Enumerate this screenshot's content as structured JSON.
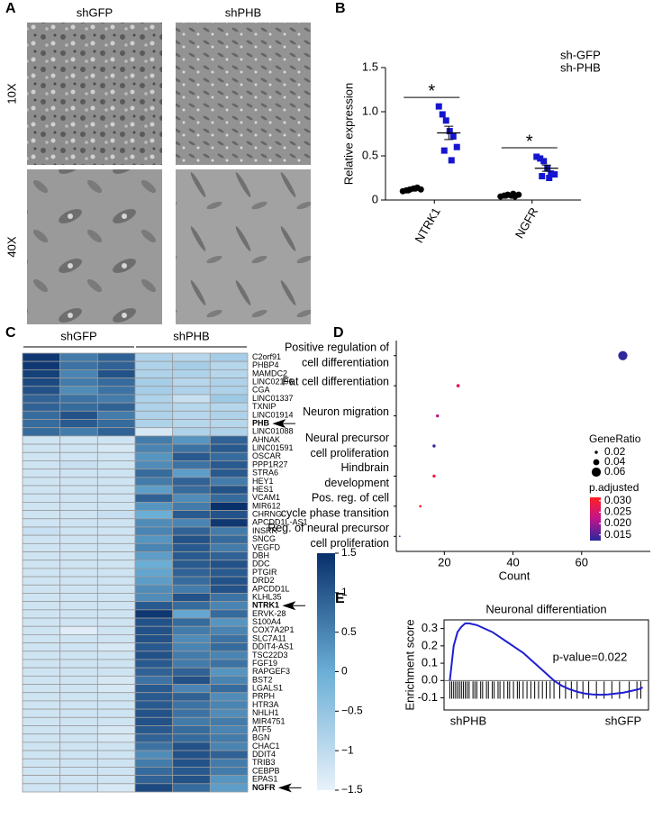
{
  "panel_labels": [
    "A",
    "B",
    "C",
    "D",
    "E"
  ],
  "micrographs": {
    "columns": [
      "shGFP",
      "shPHB"
    ],
    "rows": [
      "10X",
      "40X"
    ]
  },
  "chart_data": [
    {
      "type": "strip",
      "ylabel": "Relative expression",
      "categories": [
        "NTRK1",
        "NGFR"
      ],
      "ylim": [
        0,
        1.5
      ],
      "yticks": [
        0,
        0.5,
        {
          "value": 1,
          "label": "1.0"
        },
        1.5
      ],
      "series": [
        {
          "name": "sh-GFP",
          "color": "#000000",
          "marker": "circle",
          "values": [
            [
              0.1,
              0.11,
              0.12,
              0.13,
              0.14,
              0.12,
              0.11,
              0.13
            ],
            [
              0.04,
              0.05,
              0.06,
              0.05,
              0.04,
              0.06,
              0.05,
              0.07
            ]
          ]
        },
        {
          "name": "sh-PHB",
          "color": "#1515d0",
          "marker": "square",
          "values": [
            [
              1.06,
              0.97,
              0.9,
              0.78,
              0.72,
              0.6,
              0.56,
              0.45
            ],
            [
              0.49,
              0.47,
              0.44,
              0.36,
              0.3,
              0.29,
              0.27,
              0.25
            ]
          ],
          "mean": [
            0.76,
            0.36
          ],
          "sem": [
            0.075,
            0.035
          ]
        }
      ],
      "annotations": [
        "*",
        "*"
      ]
    },
    {
      "type": "heatmap",
      "groups": [
        {
          "name": "shGFP",
          "columns": 3,
          "color": "#000000"
        },
        {
          "name": "shPHB",
          "columns": 3,
          "color": "#1f3f8f"
        }
      ],
      "rows": [
        "C2orf91",
        "PHBP4",
        "MAMDC2",
        "LINC02196",
        "CGA",
        "LINC01337",
        "TXNIP",
        "LINC01914",
        "PHB",
        "LINC01088",
        "AHNAK",
        "LINC01591",
        "OSCAR",
        "PPP1R27",
        "STRA6",
        "HEY1",
        "HES1",
        "VCAM1",
        "MIR612",
        "CHRNG",
        "APCDD1L-AS1",
        "INSRR",
        "SNCG",
        "VEGFD",
        "DBH",
        "DDC",
        "PTGIR",
        "DRD2",
        "APCDD1L",
        "KLHL35",
        "NTRK1",
        "ERVK-28",
        "S100A4",
        "COX7A2P1",
        "SLC7A11",
        "DDIT4-AS1",
        "TSC22D3",
        "FGF19",
        "RAPGEF3",
        "BST2",
        "LGALS1",
        "PRPH",
        "HTR3A",
        "NHLH1",
        "MIR4751",
        "ATF5",
        "BGN",
        "CHAC1",
        "DDIT4",
        "TRIB3",
        "CEBPB",
        "EPAS1",
        "NGFR"
      ],
      "values": [
        [
          1.4,
          0.6,
          0.9,
          -0.8,
          -0.9,
          -0.7
        ],
        [
          1.4,
          0.7,
          0.9,
          -0.8,
          -0.7,
          -0.9
        ],
        [
          1.3,
          0.5,
          1.1,
          -0.8,
          -0.8,
          -0.9
        ],
        [
          1.2,
          0.6,
          0.8,
          -0.7,
          -0.9,
          -0.8
        ],
        [
          1.1,
          0.4,
          0.7,
          -0.7,
          -0.8,
          -0.8
        ],
        [
          0.9,
          0.7,
          0.6,
          -0.8,
          -1.1,
          -0.6
        ],
        [
          0.9,
          0.8,
          0.9,
          -0.8,
          -0.9,
          -0.9
        ],
        [
          0.8,
          1.1,
          0.6,
          -0.8,
          -0.9,
          -0.8
        ],
        [
          0.8,
          1.0,
          0.8,
          -0.8,
          -0.9,
          -0.9
        ],
        [
          0.8,
          0.6,
          0.9,
          -1.3,
          -0.8,
          -0.8
        ],
        [
          -1.2,
          -1.2,
          -1.2,
          0.6,
          0.3,
          0.9
        ],
        [
          -1.2,
          -1.2,
          -1.3,
          0.5,
          0.7,
          1.0
        ],
        [
          -1.2,
          -1.2,
          -1.2,
          0.3,
          1.0,
          0.8
        ],
        [
          -1.2,
          -1.1,
          -1.2,
          0.4,
          0.7,
          1.0
        ],
        [
          -1.2,
          -1.2,
          -1.2,
          0.8,
          0.2,
          1.0
        ],
        [
          -1.2,
          -1.2,
          -1.2,
          0.6,
          0.9,
          0.6
        ],
        [
          -1.2,
          -1.2,
          -1.2,
          0.2,
          0.8,
          1.1
        ],
        [
          -1.2,
          -1.2,
          -1.2,
          0.9,
          0.4,
          0.8
        ],
        [
          -1.2,
          -1.2,
          -1.2,
          0.3,
          0.6,
          1.5
        ],
        [
          -1.2,
          -1.2,
          -1.1,
          0.0,
          1.0,
          1.1
        ],
        [
          -1.2,
          -1.2,
          -1.2,
          0.4,
          0.5,
          1.4
        ],
        [
          -1.1,
          -1.2,
          -1.2,
          0.5,
          0.9,
          0.6
        ],
        [
          -1.2,
          -1.2,
          -1.2,
          0.3,
          1.1,
          0.8
        ],
        [
          -1.2,
          -1.2,
          -1.2,
          0.5,
          1.0,
          0.6
        ],
        [
          -1.2,
          -1.2,
          -1.2,
          0.2,
          1.0,
          0.9
        ],
        [
          -1.2,
          -1.2,
          -1.2,
          0.0,
          1.0,
          1.1
        ],
        [
          -1.2,
          -1.2,
          -1.2,
          0.1,
          0.9,
          1.0
        ],
        [
          -1.2,
          -1.2,
          -1.2,
          0.2,
          0.8,
          1.1
        ],
        [
          -1.2,
          -1.2,
          -1.2,
          0.4,
          0.6,
          1.1
        ],
        [
          -1.2,
          -1.2,
          -1.2,
          0.4,
          1.1,
          0.7
        ],
        [
          -1.2,
          -1.2,
          -1.2,
          1.0,
          0.8,
          0.5
        ],
        [
          -1.2,
          -1.2,
          -1.2,
          1.4,
          0.1,
          0.8
        ],
        [
          -1.2,
          -1.2,
          -1.2,
          1.1,
          0.8,
          0.3
        ],
        [
          -1.2,
          -1.4,
          -1.2,
          1.1,
          0.6,
          0.5
        ],
        [
          -1.2,
          -1.2,
          -1.2,
          1.1,
          0.4,
          0.7
        ],
        [
          -1.2,
          -1.2,
          -1.3,
          1.0,
          0.5,
          0.8
        ],
        [
          -1.2,
          -1.2,
          -1.2,
          1.1,
          0.6,
          0.5
        ],
        [
          -1.2,
          -1.2,
          -1.2,
          1.0,
          0.6,
          0.7
        ],
        [
          -1.2,
          -1.2,
          -1.2,
          0.9,
          0.9,
          0.3
        ],
        [
          -1.2,
          -1.2,
          -1.3,
          0.7,
          1.1,
          0.5
        ],
        [
          -1.2,
          -1.2,
          -1.3,
          1.0,
          0.5,
          0.8
        ],
        [
          -1.2,
          -1.2,
          -1.2,
          1.0,
          0.9,
          0.4
        ],
        [
          -1.2,
          -1.2,
          -1.2,
          1.0,
          0.7,
          0.5
        ],
        [
          -1.2,
          -1.2,
          -1.2,
          1.1,
          0.7,
          0.4
        ],
        [
          -1.2,
          -1.2,
          -1.2,
          1.1,
          0.6,
          0.6
        ],
        [
          -1.2,
          -1.2,
          -1.3,
          1.0,
          0.8,
          0.5
        ],
        [
          -1.2,
          -1.2,
          -1.3,
          0.9,
          0.8,
          0.6
        ],
        [
          -1.2,
          -1.2,
          -1.2,
          0.7,
          1.1,
          0.5
        ],
        [
          -1.2,
          -1.2,
          -1.2,
          0.4,
          1.1,
          0.9
        ],
        [
          -1.2,
          -1.2,
          -1.2,
          0.6,
          1.1,
          0.6
        ],
        [
          -1.2,
          -1.2,
          -1.2,
          0.8,
          1.0,
          0.6
        ],
        [
          -1.2,
          -1.2,
          -1.2,
          0.9,
          1.1,
          0.3
        ],
        [
          -1.2,
          -1.2,
          -1.3,
          1.2,
          0.8,
          0.2
        ]
      ],
      "highlight_rows": [
        8,
        30,
        52
      ],
      "colorscale": [
        "#e8f1fa",
        "#6baed6",
        "#08306b"
      ],
      "zlim": [
        -1.5,
        1.5
      ],
      "zticks": [
        1.5,
        1,
        0.5,
        0,
        {
          "value": -0.5,
          "label": "−0.5"
        },
        {
          "value": -1,
          "label": "−1"
        },
        {
          "value": -1.5,
          "label": "−1.5"
        }
      ]
    },
    {
      "type": "bubble",
      "categories": [
        [
          "Positive regulation of",
          "cell  differentiation"
        ],
        [
          "Fat cell  differentiation"
        ],
        [
          "Neuron migration"
        ],
        [
          "Neural precursor",
          "cell proliferation"
        ],
        [
          "Hindbrain",
          "development"
        ],
        [
          "Pos. reg. of cell",
          "cycle phase transition"
        ],
        [
          "Reg. of neural precursor",
          "cell proliferation"
        ]
      ],
      "values": [
        72,
        24,
        18,
        17,
        17,
        13,
        7
      ],
      "gene_ratio": [
        0.06,
        0.022,
        0.02,
        0.02,
        0.02,
        0.016,
        0.01
      ],
      "p_adjusted": [
        0.013,
        0.027,
        0.022,
        0.0135,
        0.029,
        0.031,
        0.0135
      ],
      "xlabel": "Count",
      "xlim": [
        6,
        80
      ],
      "xticks": [
        20,
        40,
        60
      ],
      "size_legend": {
        "title": "GeneRatio",
        "values": [
          0.02,
          0.04,
          0.06
        ]
      },
      "color_legend": {
        "title": "p.adjusted",
        "lim": [
          0.0125,
          0.0315
        ],
        "ticks": [
          {
            "value": 0.03,
            "label": "0.030"
          },
          0.025,
          {
            "value": 0.02,
            "label": "0.020"
          },
          0.015
        ],
        "colors": [
          "#28289c",
          "#c0148c",
          "#ff2020"
        ]
      }
    },
    {
      "type": "line",
      "title": "Neuronal differentiation",
      "ylabel": "Enrichment score",
      "annotation": "p-value=0.022",
      "x": [
        0,
        2,
        4,
        6,
        8,
        10,
        14,
        18,
        22,
        26,
        30,
        34,
        38,
        42,
        46,
        50,
        54,
        58,
        62,
        66,
        70,
        74,
        78,
        82,
        86,
        90,
        94,
        98,
        100
      ],
      "values": [
        0,
        0.2,
        0.28,
        0.31,
        0.33,
        0.33,
        0.32,
        0.3,
        0.28,
        0.25,
        0.22,
        0.19,
        0.16,
        0.12,
        0.08,
        0.04,
        0.0,
        -0.03,
        -0.05,
        -0.065,
        -0.075,
        -0.08,
        -0.082,
        -0.08,
        -0.075,
        -0.07,
        -0.06,
        -0.05,
        -0.04
      ],
      "color": "#1f1fd0",
      "hits": [
        0,
        1,
        2,
        3,
        4,
        5,
        6,
        7,
        8,
        9,
        10,
        12,
        13,
        14,
        16,
        17,
        19,
        20,
        22,
        23,
        25,
        26,
        28,
        30,
        31,
        33,
        35,
        36,
        38,
        40,
        42,
        44,
        46,
        48,
        50,
        52,
        54,
        57,
        60,
        63,
        66,
        69,
        72,
        76,
        80,
        84,
        88,
        93,
        97,
        99
      ],
      "xlim": [
        -3,
        103
      ],
      "ylim": [
        -0.17,
        0.35
      ],
      "yticks": [
        -0.1,
        {
          "value": 0,
          "label": "0.0"
        },
        0.1,
        0.2,
        0.3
      ],
      "x_end_labels": [
        "shPHB",
        "shGFP"
      ]
    }
  ]
}
